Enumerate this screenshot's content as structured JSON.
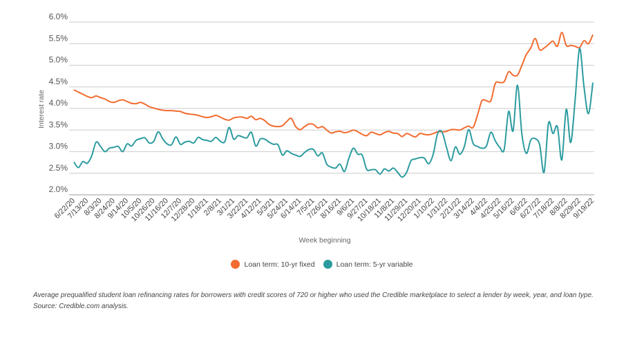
{
  "chart_data": {
    "type": "line",
    "title": "",
    "xlabel": "Week beginning",
    "ylabel": "Interest rate",
    "ylim": [
      2.0,
      6.0
    ],
    "y_ticks": [
      "2.0%",
      "2.5%",
      "3.0%",
      "3.5%",
      "4.0%",
      "4.5%",
      "5.0%",
      "5.5%",
      "6.0%"
    ],
    "y_tick_values": [
      2.0,
      2.5,
      3.0,
      3.5,
      4.0,
      4.5,
      5.0,
      5.5,
      6.0
    ],
    "grid": true,
    "x_frequency": "weekly",
    "x_start": "6/22/20",
    "x_end": "9/19/22",
    "x_tick_every_weeks": 3,
    "x_ticks": [
      "6/22/20",
      "7/13/20",
      "8/3/20",
      "8/24/20",
      "9/14/20",
      "10/5/20",
      "10/26/20",
      "11/16/20",
      "12/7/20",
      "12/28/20",
      "1/18/21",
      "2/8/21",
      "3/1/21",
      "3/22/21",
      "4/12/21",
      "5/3/21",
      "5/24/21",
      "6/14/21",
      "7/5/21",
      "7/26/21",
      "8/16/21",
      "9/6/21",
      "9/27/21",
      "10/18/21",
      "11/8/21",
      "11/29/21",
      "12/20/21",
      "1/10/22",
      "1/31/22",
      "2/21/22",
      "3/14/22",
      "4/4/22",
      "4/25/22",
      "5/16/22",
      "6/6/22",
      "6/27/22",
      "7/18/22",
      "8/8/22",
      "8/29/22",
      "9/19/22"
    ],
    "legend_position": "bottom",
    "series": [
      {
        "name": "Loan term: 10-yr fixed",
        "color": "#f26b2e",
        "values": [
          4.43,
          4.38,
          4.33,
          4.28,
          4.25,
          4.29,
          4.25,
          4.22,
          4.16,
          4.14,
          4.18,
          4.2,
          4.16,
          4.12,
          4.11,
          4.14,
          4.1,
          4.04,
          4.01,
          3.98,
          3.96,
          3.95,
          3.95,
          3.94,
          3.93,
          3.89,
          3.87,
          3.86,
          3.84,
          3.81,
          3.79,
          3.81,
          3.84,
          3.8,
          3.75,
          3.73,
          3.78,
          3.8,
          3.8,
          3.77,
          3.82,
          3.74,
          3.77,
          3.72,
          3.63,
          3.59,
          3.58,
          3.6,
          3.7,
          3.77,
          3.58,
          3.51,
          3.58,
          3.64,
          3.63,
          3.55,
          3.58,
          3.5,
          3.43,
          3.46,
          3.47,
          3.44,
          3.46,
          3.5,
          3.46,
          3.4,
          3.37,
          3.45,
          3.42,
          3.39,
          3.44,
          3.47,
          3.43,
          3.42,
          3.35,
          3.42,
          3.38,
          3.34,
          3.42,
          3.4,
          3.39,
          3.42,
          3.46,
          3.46,
          3.47,
          3.51,
          3.51,
          3.5,
          3.55,
          3.59,
          3.56,
          3.85,
          4.18,
          4.18,
          4.18,
          4.58,
          4.6,
          4.62,
          4.85,
          4.77,
          4.77,
          5.0,
          5.25,
          5.4,
          5.62,
          5.36,
          5.4,
          5.48,
          5.56,
          5.44,
          5.76,
          5.46,
          5.46,
          5.44,
          5.41,
          5.57,
          5.5,
          5.71
        ]
      },
      {
        "name": "Loan term: 5-yr variable",
        "color": "#2b9b9f",
        "values": [
          2.76,
          2.63,
          2.77,
          2.73,
          2.9,
          3.22,
          3.12,
          3.0,
          3.08,
          3.1,
          3.12,
          3.0,
          3.18,
          3.13,
          3.26,
          3.3,
          3.32,
          3.2,
          3.24,
          3.46,
          3.3,
          3.18,
          3.16,
          3.34,
          3.17,
          3.22,
          3.24,
          3.2,
          3.33,
          3.28,
          3.26,
          3.24,
          3.33,
          3.24,
          3.23,
          3.56,
          3.29,
          3.37,
          3.34,
          3.32,
          3.45,
          3.13,
          3.29,
          3.29,
          3.22,
          3.17,
          3.16,
          2.92,
          3.02,
          2.96,
          2.92,
          2.89,
          2.98,
          3.05,
          3.05,
          2.9,
          2.97,
          2.71,
          2.64,
          2.62,
          2.71,
          2.54,
          2.85,
          3.08,
          2.94,
          2.92,
          2.59,
          2.58,
          2.58,
          2.48,
          2.6,
          2.55,
          2.62,
          2.52,
          2.41,
          2.52,
          2.79,
          2.83,
          2.86,
          2.85,
          2.72,
          2.94,
          3.42,
          3.45,
          3.1,
          2.79,
          3.11,
          2.94,
          3.11,
          3.51,
          3.19,
          3.12,
          3.08,
          3.13,
          3.45,
          3.25,
          3.1,
          3.05,
          3.93,
          3.48,
          4.54,
          3.4,
          2.96,
          3.27,
          3.3,
          3.16,
          2.52,
          3.66,
          3.42,
          3.58,
          2.81,
          3.98,
          3.21,
          4.2,
          5.39,
          4.5,
          3.88,
          4.6
        ]
      }
    ]
  },
  "caption": "Average prequalified student loan refinancing rates for borrowers with credit scores of 720 or higher who used the Credible marketplace to select a lender by week, year, and loan type. Source: Credible.com analysis."
}
